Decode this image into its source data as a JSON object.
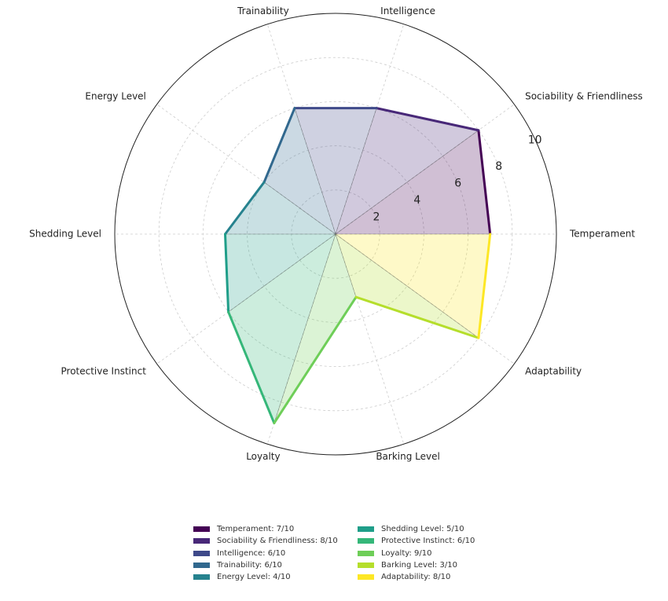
{
  "chart_data": {
    "type": "radar",
    "title": "",
    "categories": [
      "Temperament",
      "Sociability & Friendliness",
      "Intelligence",
      "Trainability",
      "Energy Level",
      "Shedding Level",
      "Protective Instinct",
      "Loyalty",
      "Barking Level",
      "Adaptability"
    ],
    "values": [
      7,
      8,
      6,
      6,
      4,
      5,
      6,
      9,
      3,
      8
    ],
    "rlim": [
      0,
      10
    ],
    "r_ticks": [
      2,
      4,
      6,
      8,
      10
    ],
    "colors": [
      "#440154",
      "#482878",
      "#3e4989",
      "#31688e",
      "#26828e",
      "#1f9e89",
      "#35b779",
      "#6ece58",
      "#b5de2b",
      "#fde725"
    ],
    "legend": [
      "Temperament: 7/10",
      "Sociability & Friendliness: 8/10",
      "Intelligence: 6/10",
      "Trainability: 6/10",
      "Energy Level: 4/10",
      "Shedding Level: 5/10",
      "Protective Instinct: 6/10",
      "Loyalty: 9/10",
      "Barking Level: 3/10",
      "Adaptability: 8/10"
    ],
    "legend_position": "bottom"
  }
}
